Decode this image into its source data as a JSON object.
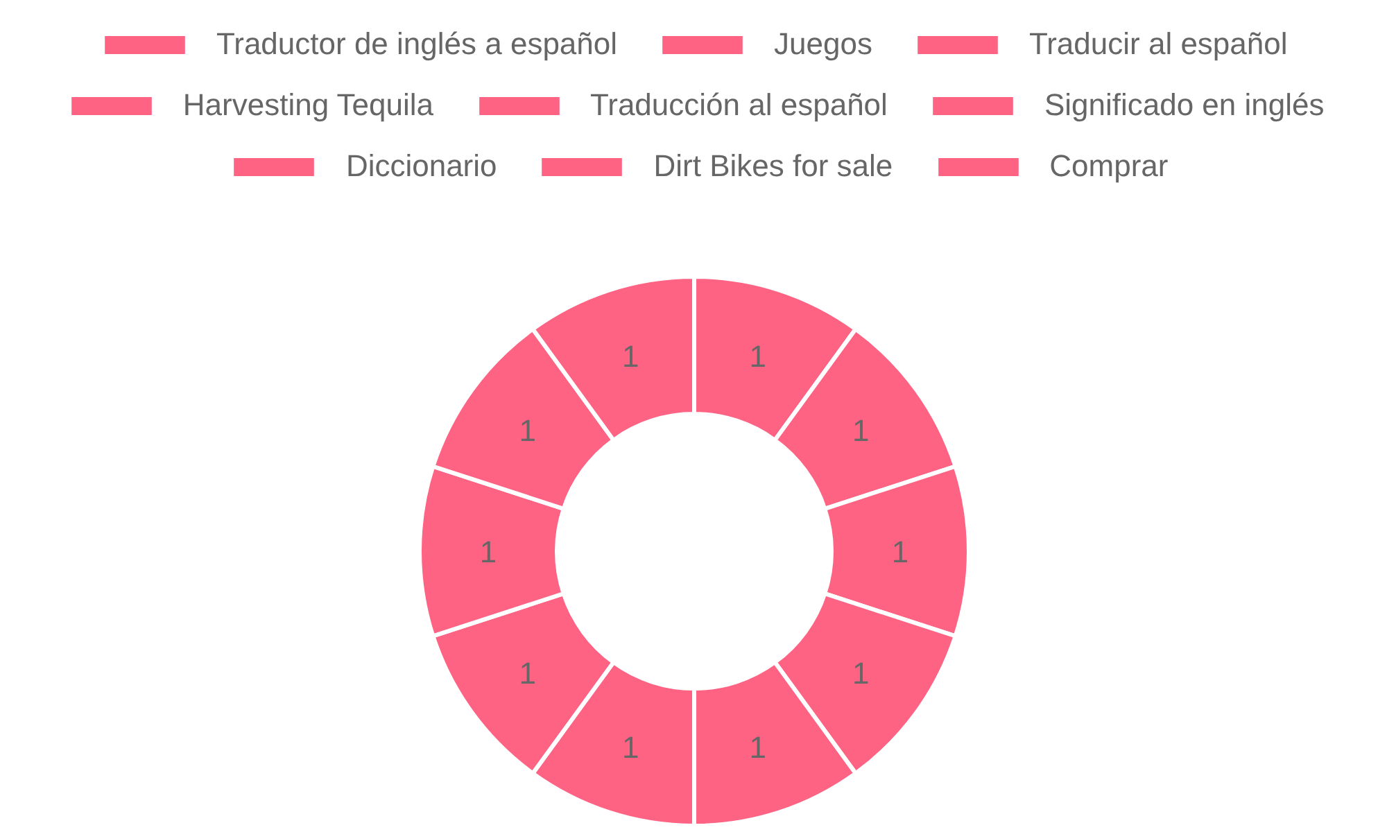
{
  "chart_data": {
    "type": "donut",
    "categories": [
      "Traductor de inglés a español",
      "Juegos",
      "Traducir al español",
      null,
      "Harvesting Tequila",
      "Traducción al español",
      "Significado en inglés",
      "Diccionario",
      "Dirt Bikes for sale",
      "Comprar"
    ],
    "values": [
      1,
      1,
      1,
      1,
      1,
      1,
      1,
      1,
      1,
      1
    ],
    "colors": [
      "#ff6384",
      "#ff6384",
      "#ff6384",
      "#ff6384",
      "#ff6384",
      "#ff6384",
      "#ff6384",
      "#ff6384",
      "#ff6384",
      "#ff6384"
    ],
    "data_labels": true,
    "legend": "top"
  }
}
